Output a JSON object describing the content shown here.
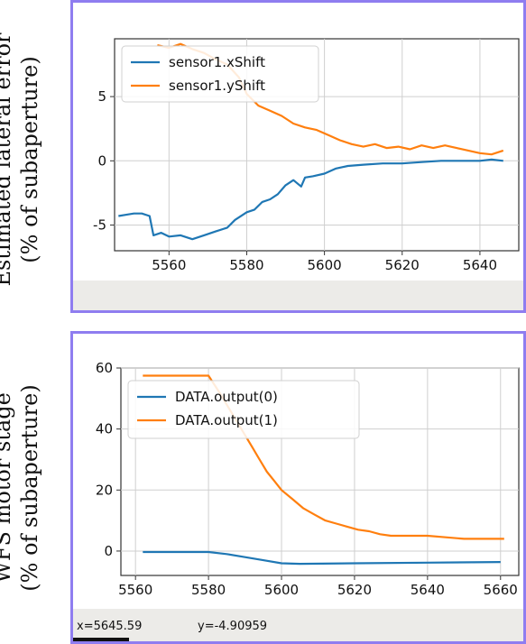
{
  "panels": [
    {
      "ylabel_line1": "Estimated lateral error",
      "ylabel_line2": "(% of subaperture)",
      "chart_data": {
        "type": "line",
        "xlim": [
          5546,
          5650
        ],
        "ylim": [
          -7,
          9.5
        ],
        "xticks": [
          5560,
          5580,
          5600,
          5620,
          5640
        ],
        "yticks": [
          -5,
          0,
          5
        ],
        "grid": true,
        "legend_position": "top-left",
        "series": [
          {
            "name": "sensor1.xShift",
            "color": "#1f77b4",
            "points": [
              [
                5547,
                -4.3
              ],
              [
                5549,
                -4.2
              ],
              [
                5551,
                -4.1
              ],
              [
                5553,
                -4.1
              ],
              [
                5555,
                -4.3
              ],
              [
                5556,
                -5.8
              ],
              [
                5558,
                -5.6
              ],
              [
                5560,
                -5.9
              ],
              [
                5563,
                -5.8
              ],
              [
                5566,
                -6.1
              ],
              [
                5569,
                -5.8
              ],
              [
                5572,
                -5.5
              ],
              [
                5575,
                -5.2
              ],
              [
                5577,
                -4.6
              ],
              [
                5580,
                -4.0
              ],
              [
                5582,
                -3.8
              ],
              [
                5584,
                -3.2
              ],
              [
                5586,
                -3.0
              ],
              [
                5588,
                -2.6
              ],
              [
                5590,
                -1.9
              ],
              [
                5592,
                -1.5
              ],
              [
                5594,
                -2.0
              ],
              [
                5595,
                -1.3
              ],
              [
                5597,
                -1.2
              ],
              [
                5600,
                -1.0
              ],
              [
                5603,
                -0.6
              ],
              [
                5606,
                -0.4
              ],
              [
                5610,
                -0.3
              ],
              [
                5615,
                -0.2
              ],
              [
                5620,
                -0.2
              ],
              [
                5625,
                -0.1
              ],
              [
                5630,
                0.0
              ],
              [
                5635,
                0.0
              ],
              [
                5640,
                0.0
              ],
              [
                5643,
                0.1
              ],
              [
                5646,
                0.0
              ]
            ]
          },
          {
            "name": "sensor1.yShift",
            "color": "#ff7f0e",
            "points": [
              [
                5557,
                9.0
              ],
              [
                5560,
                8.8
              ],
              [
                5563,
                9.1
              ],
              [
                5566,
                8.7
              ],
              [
                5569,
                8.4
              ],
              [
                5572,
                7.9
              ],
              [
                5575,
                7.5
              ],
              [
                5578,
                6.5
              ],
              [
                5580,
                5.2
              ],
              [
                5583,
                4.3
              ],
              [
                5586,
                3.9
              ],
              [
                5589,
                3.5
              ],
              [
                5592,
                2.9
              ],
              [
                5595,
                2.6
              ],
              [
                5598,
                2.4
              ],
              [
                5601,
                2.0
              ],
              [
                5604,
                1.6
              ],
              [
                5607,
                1.3
              ],
              [
                5610,
                1.1
              ],
              [
                5613,
                1.3
              ],
              [
                5616,
                1.0
              ],
              [
                5619,
                1.1
              ],
              [
                5622,
                0.9
              ],
              [
                5625,
                1.2
              ],
              [
                5628,
                1.0
              ],
              [
                5631,
                1.2
              ],
              [
                5634,
                1.0
              ],
              [
                5637,
                0.8
              ],
              [
                5640,
                0.6
              ],
              [
                5643,
                0.5
              ],
              [
                5646,
                0.8
              ]
            ]
          }
        ]
      }
    },
    {
      "ylabel_line1": "WFS motor stage",
      "ylabel_line2": "(% of subaperture)",
      "chart_data": {
        "type": "line",
        "xlim": [
          5556,
          5665
        ],
        "ylim": [
          -8,
          60
        ],
        "xticks": [
          5560,
          5580,
          5600,
          5620,
          5640,
          5660
        ],
        "yticks": [
          0,
          20,
          40,
          60
        ],
        "grid": true,
        "legend_position": "top-left",
        "series": [
          {
            "name": "DATA.output(0)",
            "color": "#1f77b4",
            "points": [
              [
                5562,
                -0.3
              ],
              [
                5570,
                -0.3
              ],
              [
                5580,
                -0.3
              ],
              [
                5585,
                -1.0
              ],
              [
                5590,
                -2.0
              ],
              [
                5595,
                -3.0
              ],
              [
                5600,
                -4.0
              ],
              [
                5605,
                -4.2
              ],
              [
                5620,
                -4.0
              ],
              [
                5640,
                -3.8
              ],
              [
                5660,
                -3.6
              ]
            ]
          },
          {
            "name": "DATA.output(1)",
            "color": "#ff7f0e",
            "points": [
              [
                5562,
                57.5
              ],
              [
                5580,
                57.5
              ],
              [
                5583,
                52
              ],
              [
                5586,
                46
              ],
              [
                5588,
                42
              ],
              [
                5590,
                38
              ],
              [
                5592,
                34
              ],
              [
                5594,
                30
              ],
              [
                5596,
                26
              ],
              [
                5598,
                23
              ],
              [
                5600,
                20
              ],
              [
                5603,
                17
              ],
              [
                5606,
                14
              ],
              [
                5609,
                12
              ],
              [
                5612,
                10
              ],
              [
                5615,
                9
              ],
              [
                5618,
                8
              ],
              [
                5621,
                7
              ],
              [
                5624,
                6.5
              ],
              [
                5627,
                5.5
              ],
              [
                5630,
                5
              ],
              [
                5640,
                5
              ],
              [
                5645,
                4.5
              ],
              [
                5650,
                4
              ],
              [
                5661,
                4
              ]
            ]
          }
        ]
      },
      "status": {
        "x_readout": "x=5645.59",
        "y_readout": "y=-4.90959"
      }
    }
  ]
}
